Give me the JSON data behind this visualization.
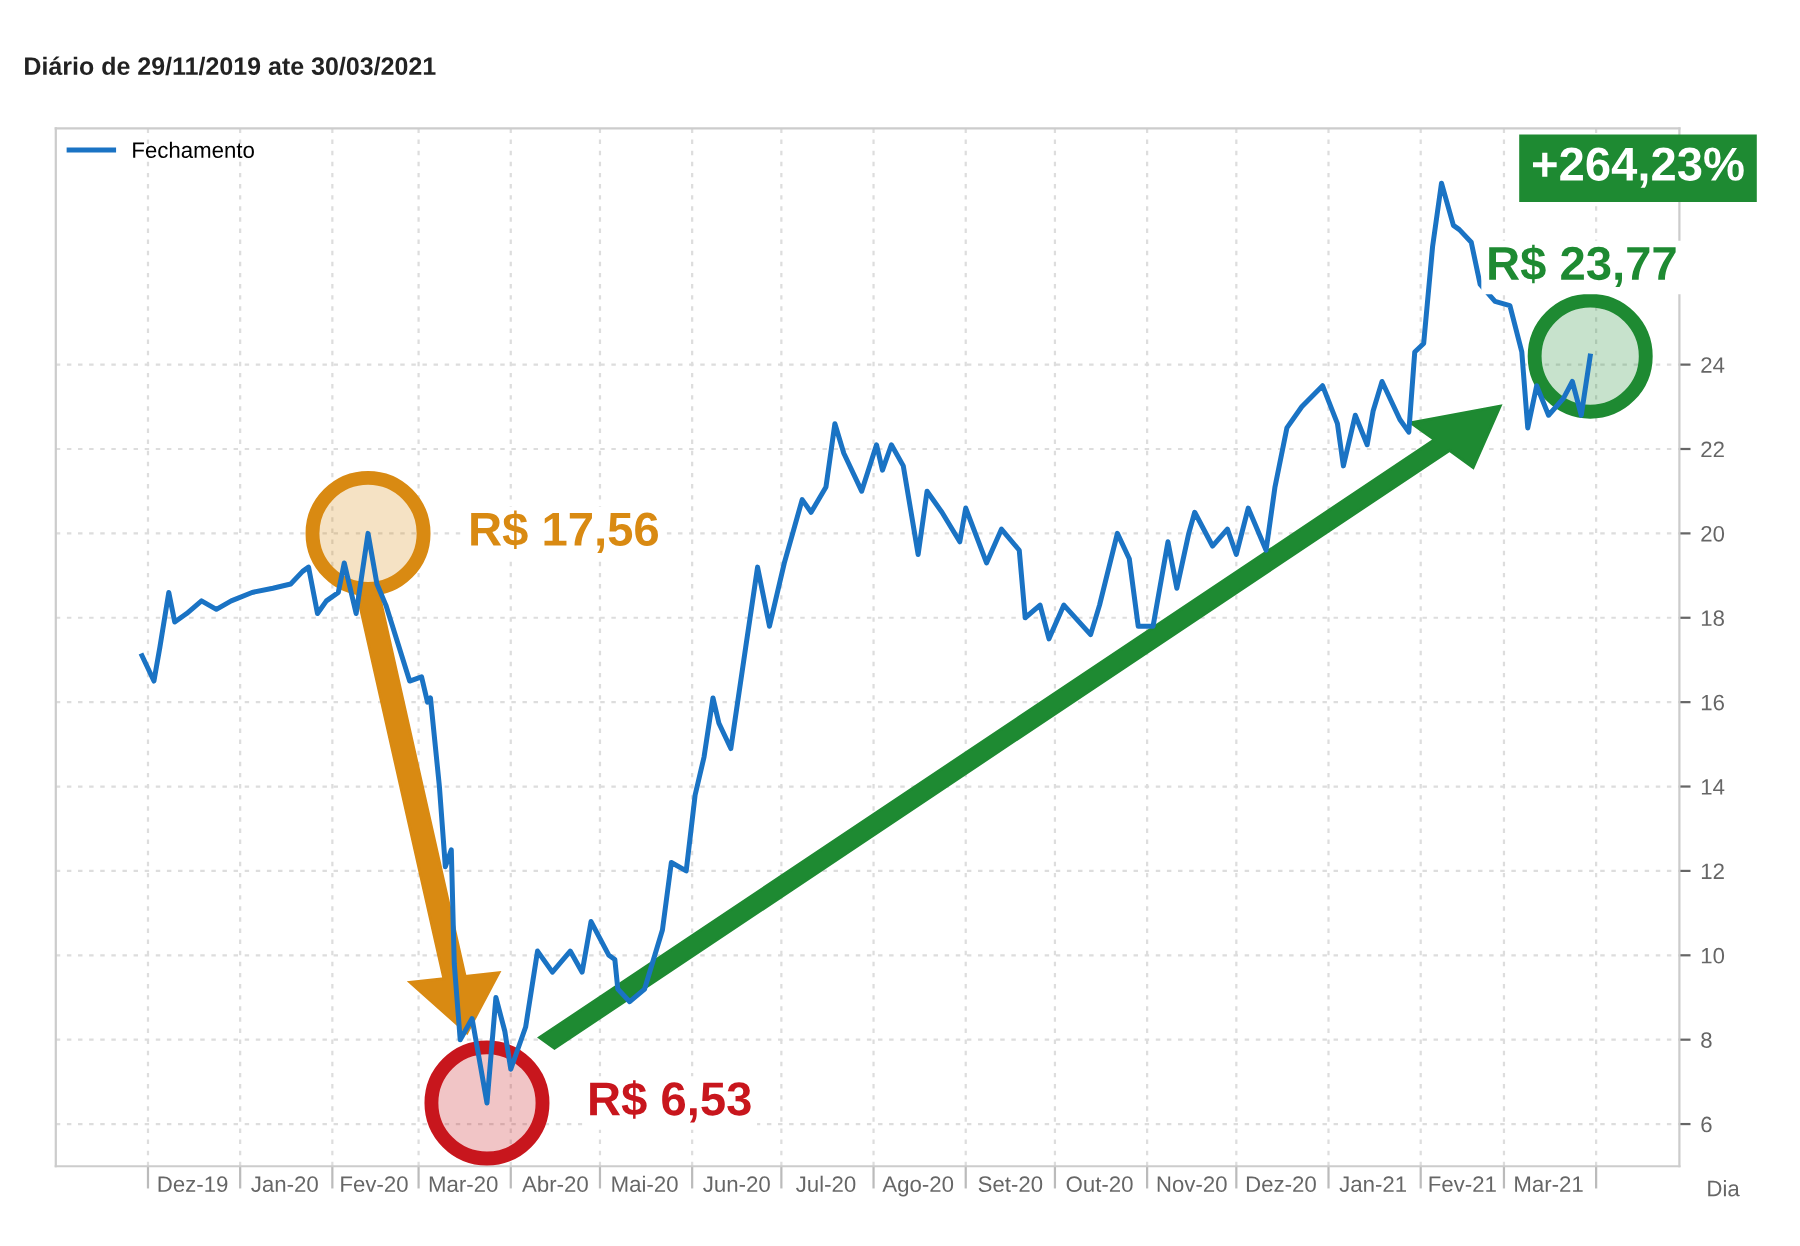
{
  "chart_data": {
    "type": "line",
    "subtitle": "Diário de 29/11/2019 ate 30/03/2021",
    "xlabel": "Dia",
    "series": [
      {
        "name": "Fechamento",
        "color": "#1a73c4",
        "x": [
          "2019-11-29",
          "2019-12-03",
          "2019-12-05",
          "2019-12-08",
          "2019-12-10",
          "2019-12-14",
          "2019-12-19",
          "2019-12-24",
          "2019-12-29",
          "2020-01-05",
          "2020-01-12",
          "2020-01-18",
          "2020-01-22",
          "2020-01-24",
          "2020-01-27",
          "2020-01-30",
          "2020-02-03",
          "2020-02-05",
          "2020-02-09",
          "2020-02-13",
          "2020-02-16",
          "2020-02-19",
          "2020-02-23",
          "2020-02-27",
          "2020-03-02",
          "2020-03-04",
          "2020-03-05",
          "2020-03-08",
          "2020-03-10",
          "2020-03-12",
          "2020-03-13",
          "2020-03-15",
          "2020-03-19",
          "2020-03-24",
          "2020-03-27",
          "2020-03-30",
          "2020-04-01",
          "2020-04-06",
          "2020-04-10",
          "2020-04-15",
          "2020-04-21",
          "2020-04-25",
          "2020-04-28",
          "2020-05-04",
          "2020-05-06",
          "2020-05-07",
          "2020-05-11",
          "2020-05-16",
          "2020-05-22",
          "2020-05-25",
          "2020-05-30",
          "2020-06-02",
          "2020-06-05",
          "2020-06-08",
          "2020-06-10",
          "2020-06-14",
          "2020-06-19",
          "2020-06-23",
          "2020-06-27",
          "2020-07-02",
          "2020-07-08",
          "2020-07-11",
          "2020-07-16",
          "2020-07-19",
          "2020-07-22",
          "2020-07-28",
          "2020-08-02",
          "2020-08-04",
          "2020-08-07",
          "2020-08-11",
          "2020-08-16",
          "2020-08-19",
          "2020-08-24",
          "2020-08-30",
          "2020-09-01",
          "2020-09-08",
          "2020-09-13",
          "2020-09-19",
          "2020-09-21",
          "2020-09-26",
          "2020-09-29",
          "2020-10-04",
          "2020-10-13",
          "2020-10-16",
          "2020-10-22",
          "2020-10-26",
          "2020-10-29",
          "2020-11-03",
          "2020-11-08",
          "2020-11-11",
          "2020-11-15",
          "2020-11-17",
          "2020-11-23",
          "2020-11-28",
          "2020-12-01",
          "2020-12-05",
          "2020-12-11",
          "2020-12-14",
          "2020-12-18",
          "2020-12-23",
          "2020-12-30",
          "2021-01-04",
          "2021-01-06",
          "2021-01-10",
          "2021-01-14",
          "2021-01-16",
          "2021-01-19",
          "2021-01-25",
          "2021-01-28",
          "2021-01-30",
          "2021-02-02",
          "2021-02-05",
          "2021-02-08",
          "2021-02-12",
          "2021-02-14",
          "2021-02-18",
          "2021-02-21",
          "2021-02-26",
          "2021-03-03",
          "2021-03-07",
          "2021-03-09",
          "2021-03-12",
          "2021-03-16",
          "2021-03-21",
          "2021-03-24",
          "2021-03-27",
          "2021-03-30"
        ],
        "values": [
          17.1,
          16.5,
          17.3,
          18.6,
          17.9,
          18.1,
          18.4,
          18.2,
          18.4,
          18.6,
          18.7,
          18.8,
          19.1,
          19.2,
          18.1,
          18.4,
          18.6,
          19.3,
          18.1,
          20.0,
          18.8,
          18.3,
          17.4,
          16.5,
          16.6,
          16.0,
          16.1,
          14.0,
          12.1,
          12.5,
          9.8,
          8.0,
          8.5,
          6.5,
          9.0,
          8.2,
          7.3,
          8.3,
          10.1,
          9.6,
          10.1,
          9.6,
          10.8,
          10.0,
          9.9,
          9.2,
          8.9,
          9.2,
          10.6,
          12.2,
          12.0,
          13.8,
          14.7,
          16.1,
          15.5,
          14.9,
          17.3,
          19.2,
          17.8,
          19.3,
          20.8,
          20.5,
          21.1,
          22.6,
          21.9,
          21.0,
          22.1,
          21.5,
          22.1,
          21.6,
          19.5,
          21.0,
          20.5,
          19.8,
          20.6,
          19.3,
          20.1,
          19.6,
          18.0,
          18.3,
          17.5,
          18.3,
          17.6,
          18.3,
          20.0,
          19.4,
          17.8,
          17.8,
          19.8,
          18.7,
          20.0,
          20.5,
          19.7,
          20.1,
          19.5,
          20.6,
          19.6,
          21.1,
          22.5,
          23.0,
          23.5,
          22.6,
          21.6,
          22.8,
          22.1,
          22.9,
          23.6,
          22.7,
          22.4,
          24.3,
          24.5,
          26.8,
          28.3,
          27.3,
          27.2,
          26.9,
          25.9,
          25.5,
          25.4,
          24.3,
          22.5,
          23.5,
          22.8,
          23.2,
          23.6,
          22.8,
          24.2
        ]
      }
    ],
    "xlim": [
      "2019-10-31",
      "2021-04-29"
    ],
    "xticks": [
      {
        "value": "2019-12-01",
        "label": null
      },
      {
        "value": "2019-12-16",
        "label": "Dez-19"
      },
      {
        "value": "2020-01-01",
        "label": null
      },
      {
        "value": "2020-01-16",
        "label": "Jan-20"
      },
      {
        "value": "2020-02-01",
        "label": null
      },
      {
        "value": "2020-02-15",
        "label": "Fev-20"
      },
      {
        "value": "2020-03-01",
        "label": null
      },
      {
        "value": "2020-03-16",
        "label": "Mar-20"
      },
      {
        "value": "2020-04-01",
        "label": null
      },
      {
        "value": "2020-04-16",
        "label": "Abr-20"
      },
      {
        "value": "2020-05-01",
        "label": null
      },
      {
        "value": "2020-05-16",
        "label": "Mai-20"
      },
      {
        "value": "2020-06-01",
        "label": null
      },
      {
        "value": "2020-06-16",
        "label": "Jun-20"
      },
      {
        "value": "2020-07-01",
        "label": null
      },
      {
        "value": "2020-07-16",
        "label": "Jul-20"
      },
      {
        "value": "2020-08-01",
        "label": null
      },
      {
        "value": "2020-08-16",
        "label": "Ago-20"
      },
      {
        "value": "2020-09-01",
        "label": null
      },
      {
        "value": "2020-09-16",
        "label": "Set-20"
      },
      {
        "value": "2020-10-01",
        "label": null
      },
      {
        "value": "2020-10-16",
        "label": "Out-20"
      },
      {
        "value": "2020-11-01",
        "label": null
      },
      {
        "value": "2020-11-16",
        "label": "Nov-20"
      },
      {
        "value": "2020-12-01",
        "label": null
      },
      {
        "value": "2020-12-16",
        "label": "Dez-20"
      },
      {
        "value": "2021-01-01",
        "label": null
      },
      {
        "value": "2021-01-16",
        "label": "Jan-21"
      },
      {
        "value": "2021-02-01",
        "label": null
      },
      {
        "value": "2021-02-15",
        "label": "Fev-21"
      },
      {
        "value": "2021-03-01",
        "label": null
      },
      {
        "value": "2021-03-16",
        "label": "Mar-21"
      },
      {
        "value": "2021-04-01",
        "label": null
      }
    ],
    "ylim": [
      5,
      29.6
    ],
    "yticks": [
      6,
      8,
      10,
      12,
      14,
      16,
      18,
      20,
      22,
      24
    ],
    "grid": true,
    "legend": "top left",
    "marker": "none",
    "line_style": "solid",
    "annotations": [
      {
        "text": "R$ 17,56",
        "x": "2020-02-13",
        "y": 20.0
      },
      {
        "text": "R$ 6,53",
        "x": "2020-03-24",
        "y": 6.5
      },
      {
        "text": "R$ 23,77",
        "x": "2021-03-30",
        "y": 24.2
      },
      "+264,23%"
    ]
  }
}
